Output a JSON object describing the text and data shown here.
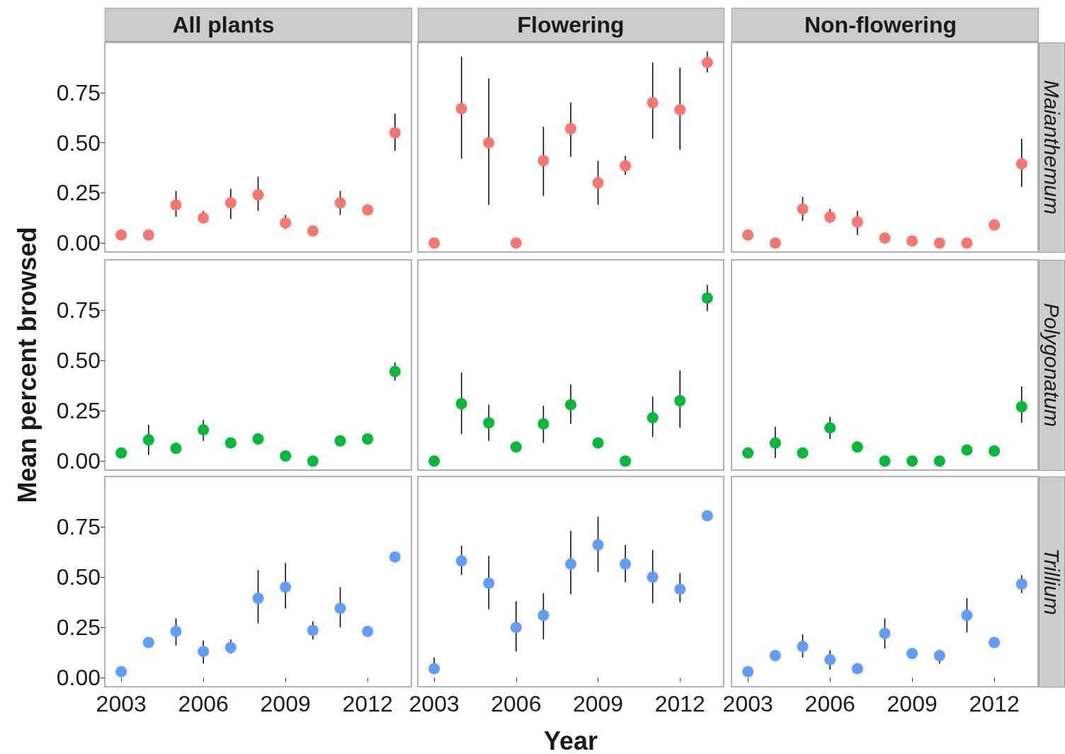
{
  "chart_data": [
    {
      "type": "scatter",
      "title": "All plants",
      "x": [
        2003,
        2004,
        2005,
        2006,
        2007,
        2008,
        2009,
        2010,
        2011,
        2012,
        2013
      ],
      "series": [
        {
          "color": "#f8766d",
          "values": [
            0.04,
            0.04,
            0.19,
            0.125,
            0.2,
            0.24,
            0.1,
            0.06,
            0.2,
            0.165,
            0.55
          ],
          "errors": [
            null,
            null,
            [
              0.13,
              0.26
            ],
            [
              0.11,
              0.16
            ],
            [
              0.12,
              0.27
            ],
            [
              0.16,
              0.33
            ],
            [
              0.07,
              0.14
            ],
            null,
            [
              0.14,
              0.26
            ],
            null,
            [
              0.46,
              0.645
            ]
          ]
        }
      ],
      "xlim": [
        2002.4,
        2013.6
      ],
      "ylim": [
        -0.045,
        1.0
      ],
      "yticks": [
        {
          "value": 0,
          "label": "0.00"
        },
        {
          "value": 0.25,
          "label": "0.25"
        },
        {
          "value": 0.5,
          "label": "0.50"
        },
        {
          "value": 0.75,
          "label": "0.75"
        }
      ],
      "grid": false,
      "marker": "circle",
      "tick_labels": "y"
    },
    {
      "type": "scatter",
      "title": "Flowering",
      "x": [
        2003,
        2004,
        2005,
        2006,
        2007,
        2008,
        2009,
        2010,
        2011,
        2012,
        2013
      ],
      "series": [
        {
          "color": "#f8766d",
          "values": [
            0,
            0.67,
            0.5,
            0,
            0.41,
            0.57,
            0.3,
            0.385,
            0.7,
            0.665,
            0.9
          ],
          "errors": [
            null,
            [
              0.42,
              0.93
            ],
            [
              0.19,
              0.82
            ],
            null,
            [
              0.235,
              0.58
            ],
            [
              0.43,
              0.7
            ],
            [
              0.19,
              0.41
            ],
            [
              0.34,
              0.435
            ],
            [
              0.52,
              0.9
            ],
            [
              0.465,
              0.875
            ],
            [
              0.85,
              0.955
            ]
          ]
        }
      ],
      "xlim": [
        2002.4,
        2013.6
      ],
      "ylim": [
        -0.045,
        1.0
      ],
      "grid": false,
      "marker": "circle",
      "tick_labels": false
    },
    {
      "type": "scatter",
      "title": "Non-flowering",
      "annotations": [
        "Maianthemum"
      ],
      "x": [
        2003,
        2004,
        2005,
        2006,
        2007,
        2008,
        2009,
        2010,
        2011,
        2012,
        2013
      ],
      "series": [
        {
          "color": "#f8766d",
          "values": [
            0.04,
            0,
            0.17,
            0.13,
            0.105,
            0.025,
            0.01,
            0,
            0,
            0.09,
            0.395
          ],
          "errors": [
            null,
            null,
            [
              0.11,
              0.23
            ],
            [
              0.1,
              0.17
            ],
            [
              0.04,
              0.16
            ],
            null,
            null,
            null,
            null,
            null,
            [
              0.28,
              0.52
            ]
          ]
        }
      ],
      "xlim": [
        2002.4,
        2013.6
      ],
      "ylim": [
        -0.045,
        1.0
      ],
      "grid": false,
      "marker": "circle",
      "tick_labels": false
    },
    {
      "type": "scatter",
      "ylabel": "Mean percent browsed",
      "x": [
        2003,
        2004,
        2005,
        2006,
        2007,
        2008,
        2009,
        2010,
        2011,
        2012,
        2013
      ],
      "series": [
        {
          "color": "#00ba38",
          "values": [
            0.04,
            0.105,
            0.063,
            0.155,
            0.09,
            0.11,
            0.025,
            0,
            0.1,
            0.11,
            0.445
          ],
          "errors": [
            null,
            [
              0.03,
              0.18
            ],
            null,
            [
              0.1,
              0.205
            ],
            null,
            null,
            null,
            null,
            null,
            null,
            [
              0.4,
              0.49
            ]
          ]
        }
      ],
      "xlim": [
        2002.4,
        2013.6
      ],
      "ylim": [
        -0.045,
        1.0
      ],
      "yticks": [
        {
          "value": 0,
          "label": "0.00"
        },
        {
          "value": 0.25,
          "label": "0.25"
        },
        {
          "value": 0.5,
          "label": "0.50"
        },
        {
          "value": 0.75,
          "label": "0.75"
        }
      ],
      "grid": false,
      "marker": "circle",
      "tick_labels": "y"
    },
    {
      "type": "scatter",
      "x": [
        2003,
        2004,
        2005,
        2006,
        2007,
        2008,
        2009,
        2010,
        2011,
        2012,
        2013
      ],
      "series": [
        {
          "color": "#00ba38",
          "values": [
            0,
            0.285,
            0.19,
            0.07,
            0.185,
            0.28,
            0.09,
            0,
            0.215,
            0.3,
            0.81
          ],
          "errors": [
            null,
            [
              0.135,
              0.44
            ],
            [
              0.1,
              0.28
            ],
            null,
            [
              0.09,
              0.275
            ],
            [
              0.185,
              0.38
            ],
            null,
            null,
            [
              0.12,
              0.32
            ],
            [
              0.165,
              0.45
            ],
            [
              0.745,
              0.875
            ]
          ]
        }
      ],
      "xlim": [
        2002.4,
        2013.6
      ],
      "ylim": [
        -0.045,
        1.0
      ],
      "grid": false,
      "marker": "circle",
      "tick_labels": false
    },
    {
      "type": "scatter",
      "annotations": [
        "Polygonatum"
      ],
      "x": [
        2003,
        2004,
        2005,
        2006,
        2007,
        2008,
        2009,
        2010,
        2011,
        2012,
        2013
      ],
      "series": [
        {
          "color": "#00ba38",
          "values": [
            0.04,
            0.09,
            0.04,
            0.165,
            0.07,
            0,
            0,
            0,
            0.055,
            0.05,
            0.27
          ],
          "errors": [
            null,
            [
              0.015,
              0.17
            ],
            null,
            [
              0.11,
              0.22
            ],
            null,
            null,
            null,
            null,
            null,
            null,
            [
              0.19,
              0.37
            ]
          ]
        }
      ],
      "xlim": [
        2002.4,
        2013.6
      ],
      "ylim": [
        -0.045,
        1.0
      ],
      "grid": false,
      "marker": "circle",
      "tick_labels": false
    },
    {
      "type": "scatter",
      "x": [
        2003,
        2004,
        2005,
        2006,
        2007,
        2008,
        2009,
        2010,
        2011,
        2012,
        2013
      ],
      "series": [
        {
          "color": "#619cff",
          "values": [
            0.03,
            0.175,
            0.23,
            0.13,
            0.15,
            0.395,
            0.45,
            0.235,
            0.345,
            0.23,
            0.6
          ],
          "errors": [
            null,
            null,
            [
              0.16,
              0.295
            ],
            [
              0.07,
              0.185
            ],
            [
              0.12,
              0.19
            ],
            [
              0.27,
              0.535
            ],
            [
              0.345,
              0.57
            ],
            [
              0.19,
              0.28
            ],
            [
              0.25,
              0.45
            ],
            null,
            null
          ]
        }
      ],
      "xlim": [
        2002.4,
        2013.6
      ],
      "xticks": [
        2003,
        2006,
        2009,
        2012
      ],
      "ylim": [
        -0.045,
        1.0
      ],
      "yticks": [
        {
          "value": 0,
          "label": "0.00"
        },
        {
          "value": 0.25,
          "label": "0.25"
        },
        {
          "value": 0.5,
          "label": "0.50"
        },
        {
          "value": 0.75,
          "label": "0.75"
        }
      ],
      "grid": false,
      "marker": "circle"
    },
    {
      "type": "scatter",
      "xlabel": "Year",
      "x": [
        2003,
        2004,
        2005,
        2006,
        2007,
        2008,
        2009,
        2010,
        2011,
        2012,
        2013
      ],
      "series": [
        {
          "color": "#619cff",
          "values": [
            0.045,
            0.58,
            0.47,
            0.25,
            0.31,
            0.565,
            0.66,
            0.565,
            0.5,
            0.44,
            0.805
          ],
          "errors": [
            [
              0.02,
              0.1
            ],
            [
              0.51,
              0.655
            ],
            [
              0.34,
              0.605
            ],
            [
              0.13,
              0.38
            ],
            [
              0.19,
              0.42
            ],
            [
              0.415,
              0.73
            ],
            [
              0.525,
              0.8
            ],
            [
              0.475,
              0.66
            ],
            [
              0.37,
              0.635
            ],
            [
              0.375,
              0.52
            ],
            null
          ]
        }
      ],
      "xlim": [
        2002.4,
        2013.6
      ],
      "xticks": [
        2003,
        2006,
        2009,
        2012
      ],
      "ylim": [
        -0.045,
        1.0
      ],
      "grid": false,
      "marker": "circle",
      "tick_labels": "x"
    },
    {
      "type": "scatter",
      "annotations": [
        "Trillium"
      ],
      "x": [
        2003,
        2004,
        2005,
        2006,
        2007,
        2008,
        2009,
        2010,
        2011,
        2012,
        2013
      ],
      "series": [
        {
          "color": "#619cff",
          "values": [
            0.03,
            0.11,
            0.155,
            0.09,
            0.045,
            0.22,
            0.12,
            0.11,
            0.31,
            0.175,
            0.465
          ],
          "errors": [
            null,
            null,
            [
              0.1,
              0.215
            ],
            [
              0.04,
              0.135
            ],
            null,
            [
              0.145,
              0.295
            ],
            null,
            [
              0.07,
              0.14
            ],
            [
              0.225,
              0.395
            ],
            null,
            [
              0.42,
              0.51
            ]
          ]
        }
      ],
      "xlim": [
        2002.4,
        2013.6
      ],
      "xticks": [
        2003,
        2006,
        2009,
        2012
      ],
      "ylim": [
        -0.045,
        1.0
      ],
      "grid": false,
      "marker": "circle",
      "tick_labels": "x"
    }
  ]
}
